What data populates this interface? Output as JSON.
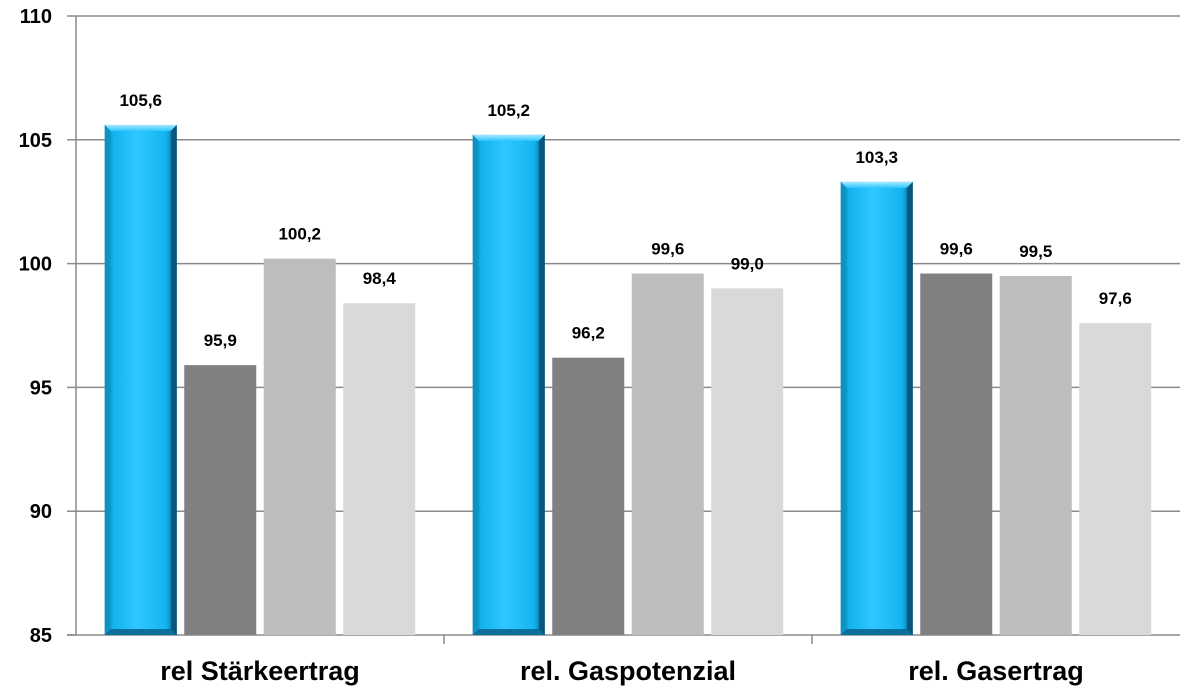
{
  "chart_data": {
    "type": "bar",
    "title": "",
    "xlabel": "",
    "ylabel": "",
    "ylim": [
      85,
      110
    ],
    "yticks": [
      85,
      90,
      95,
      100,
      105,
      110
    ],
    "categories": [
      "rel Stärkeertrag",
      "rel. Gaspotenzial",
      "rel. Gasertrag"
    ],
    "grid": true,
    "legend": "none",
    "decimal_separator": ",",
    "series": [
      {
        "color": "#13b4f0",
        "style": "3d-bevel",
        "values": [
          105.6,
          105.2,
          103.3
        ]
      },
      {
        "color": "#808080",
        "values": [
          95.9,
          96.2,
          99.6
        ]
      },
      {
        "color": "#bdbdbd",
        "values": [
          100.2,
          99.6,
          99.5
        ]
      },
      {
        "color": "#d9d9d9",
        "values": [
          98.4,
          99.0,
          97.6
        ]
      }
    ]
  }
}
